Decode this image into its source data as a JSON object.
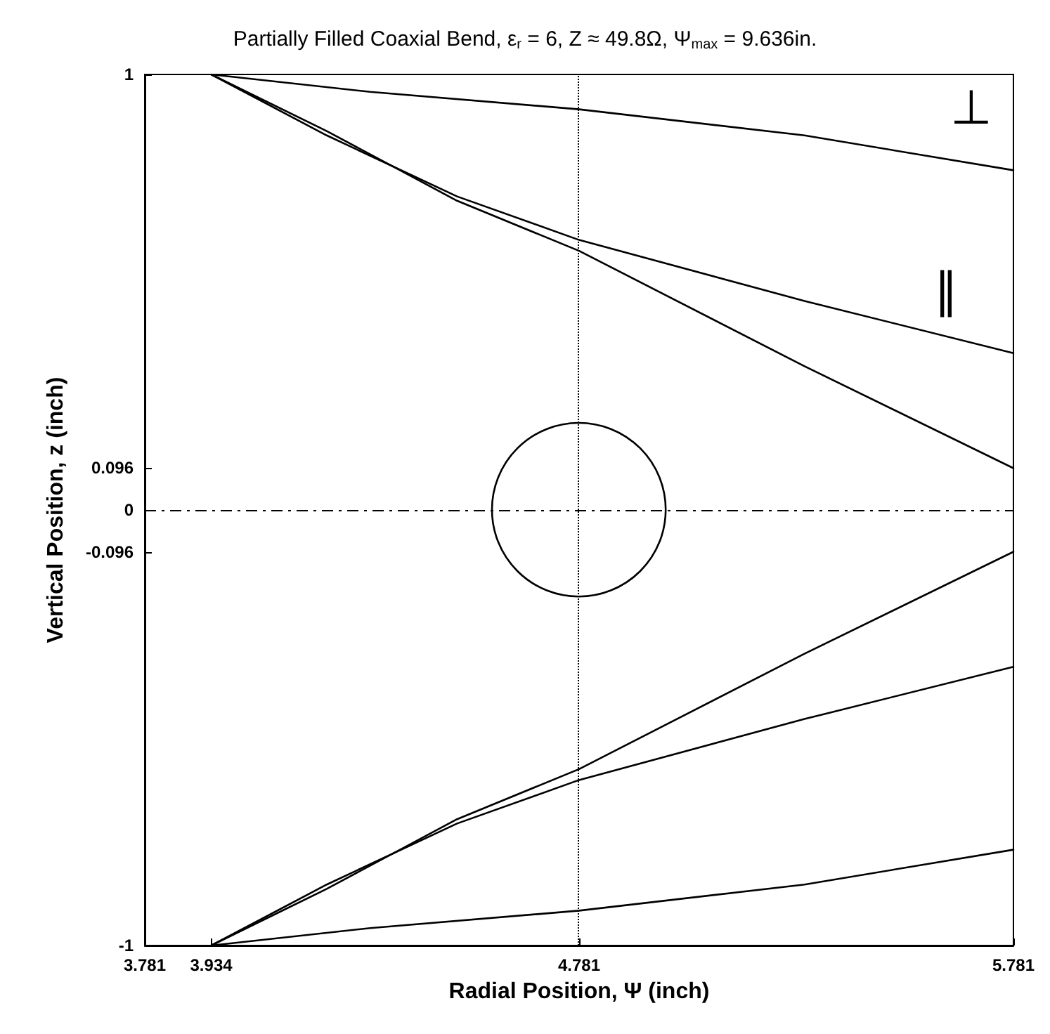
{
  "chart_data": {
    "type": "line",
    "title": "Partially Filled Coaxial Bend, ε$_{r}$ = 6, Z ≈ 49.8Ω, Ψ$_{max}$ = 9.636in.",
    "xlabel": "Radial Position, Ψ (inch)",
    "ylabel": "Vertical Position, z (inch)",
    "xlim": [
      3.781,
      5.781
    ],
    "xticks": [
      3.781,
      3.934,
      4.781,
      5.781
    ],
    "ylim": [
      -1,
      1
    ],
    "yticks": [
      -1,
      -0.096,
      0,
      0.096,
      1
    ],
    "grid": false,
    "marker": "none",
    "line_style": "solid",
    "series": [
      {
        "color": "#000000",
        "x": [
          3.934,
          4.3,
          4.781,
          5.3,
          5.781
        ],
        "values": [
          1,
          0.96,
          0.92,
          0.86,
          0.78
        ]
      },
      {
        "color": "#000000",
        "x": [
          3.934,
          4.2,
          4.5,
          4.781,
          5.3,
          5.781
        ],
        "values": [
          1,
          0.86,
          0.72,
          0.62,
          0.48,
          0.36
        ]
      },
      {
        "color": "#000000",
        "x": [
          3.934,
          4.2,
          4.5,
          4.781,
          5.3,
          5.781
        ],
        "values": [
          1,
          0.87,
          0.71,
          0.595,
          0.33,
          0.096
        ]
      },
      {
        "color": "#000000",
        "x": [
          3.934,
          4.3,
          4.781,
          5.3,
          5.781
        ],
        "values": [
          -1,
          -0.96,
          -0.92,
          -0.86,
          -0.78
        ]
      },
      {
        "color": "#000000",
        "x": [
          3.934,
          4.2,
          4.5,
          4.781,
          5.3,
          5.781
        ],
        "values": [
          -1,
          -0.86,
          -0.72,
          -0.62,
          -0.48,
          -0.36
        ]
      },
      {
        "color": "#000000",
        "x": [
          3.934,
          4.2,
          4.5,
          4.781,
          5.3,
          5.781
        ],
        "values": [
          -1,
          -0.87,
          -0.71,
          -0.595,
          -0.33,
          -0.096
        ]
      }
    ],
    "ref_lines": [
      {
        "axis": "x",
        "value": 4.781,
        "line_style": "dotted",
        "color": "#000000"
      },
      {
        "axis": "y",
        "value": 0,
        "line_style": "dashed",
        "color": "#000000"
      }
    ],
    "annotations": [
      "⊥",
      "∥"
    ]
  }
}
